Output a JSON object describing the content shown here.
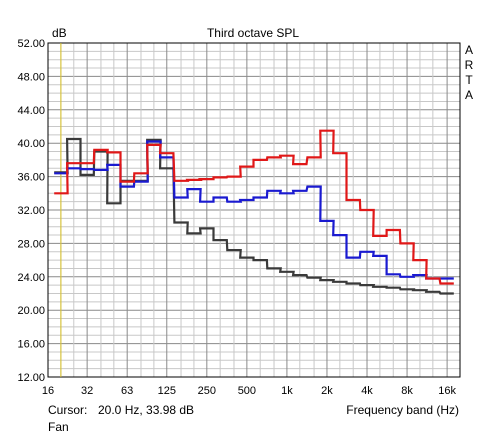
{
  "chart_data": {
    "type": "line",
    "step": true,
    "title": "Third octave SPL",
    "y_unit": "dB",
    "xlabel": "Frequency band (Hz)",
    "watermark": "ARTA",
    "x_scale": "log",
    "xlim": [
      16,
      20000
    ],
    "ylim": [
      12,
      52
    ],
    "grid": true,
    "y_ticks": [
      "12.00",
      "16.00",
      "20.00",
      "24.00",
      "28.00",
      "32.00",
      "36.00",
      "40.00",
      "44.00",
      "48.00",
      "52.00"
    ],
    "x_tick_labels": [
      {
        "f": 16,
        "label": "16"
      },
      {
        "f": 31.5,
        "label": "32"
      },
      {
        "f": 63,
        "label": "63"
      },
      {
        "f": 125,
        "label": "125"
      },
      {
        "f": 250,
        "label": "250"
      },
      {
        "f": 500,
        "label": "500"
      },
      {
        "f": 1000,
        "label": "1k"
      },
      {
        "f": 2000,
        "label": "2k"
      },
      {
        "f": 4000,
        "label": "4k"
      },
      {
        "f": 8000,
        "label": "8k"
      },
      {
        "f": 16000,
        "label": "16k"
      }
    ],
    "bands": [
      20,
      25,
      31.5,
      40,
      50,
      63,
      80,
      100,
      125,
      160,
      200,
      250,
      315,
      400,
      500,
      630,
      800,
      1000,
      1250,
      1600,
      2000,
      2500,
      3150,
      4000,
      5000,
      6300,
      8000,
      10000,
      12500,
      16000
    ],
    "cursor": {
      "freq": 20.0,
      "label": "Cursor:",
      "value": "20.0 Hz, 33.98 dB",
      "color": "#d8c020"
    },
    "footer_label": "Fan",
    "series": [
      {
        "color": "#3a3a3a",
        "values": [
          36.5,
          40.5,
          36.2,
          39.0,
          32.8,
          35.5,
          35.5,
          40.4,
          37.0,
          30.5,
          29.2,
          29.8,
          28.4,
          27.2,
          26.3,
          26.0,
          25.0,
          24.6,
          24.2,
          23.9,
          23.6,
          23.4,
          23.2,
          23.0,
          22.8,
          22.7,
          22.5,
          22.4,
          22.2,
          22.0
        ]
      },
      {
        "color": "#1a1ad0",
        "values": [
          36.4,
          37.0,
          36.9,
          36.8,
          37.4,
          34.8,
          35.4,
          40.2,
          38.3,
          33.5,
          34.5,
          33.0,
          33.5,
          33.0,
          33.2,
          33.5,
          34.3,
          34.0,
          34.3,
          34.8,
          30.7,
          29.0,
          26.3,
          27.0,
          26.5,
          24.3,
          24.0,
          24.2,
          23.8,
          23.8
        ]
      },
      {
        "color": "#e01818",
        "values": [
          34.0,
          37.6,
          37.6,
          39.2,
          38.9,
          35.4,
          36.4,
          39.8,
          38.8,
          35.5,
          35.6,
          35.7,
          35.9,
          36.0,
          37.2,
          38.0,
          38.3,
          38.5,
          37.5,
          38.3,
          41.5,
          38.8,
          33.2,
          32.0,
          28.9,
          29.6,
          28.0,
          26.0,
          23.8,
          23.2
        ]
      }
    ]
  }
}
